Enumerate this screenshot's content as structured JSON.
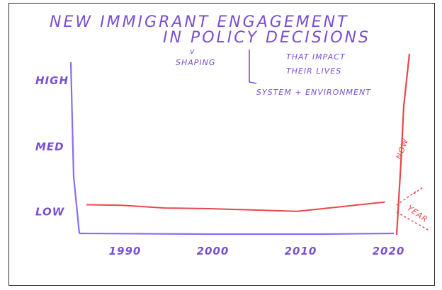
{
  "title_line1": "NEW IMMIGRANT ENGAGEMENT",
  "title_line2": "IN POLICY DECISIONS",
  "annotations": {
    "shaping": "SHAPING",
    "impact_1": "THAT IMPACT",
    "impact_2": "THEIR LIVES",
    "system": "SYSTEM + ENVIRONMENT"
  },
  "colors": {
    "axis": "#8a6df0",
    "ink": "#7a4fd0",
    "series": "#e8474a"
  },
  "chart_data": {
    "type": "line",
    "title": "NEW IMMIGRANT ENGAGEMENT IN POLICY DECISIONS",
    "xlabel": "",
    "ylabel": "",
    "x_ticks": [
      "1990",
      "2000",
      "2010",
      "2020"
    ],
    "y_ticks": [
      "LOW",
      "MED",
      "HIGH"
    ],
    "y_scale": "ordinal (LOW=0, MED=1, HIGH=2)",
    "xlim": [
      1986,
      2021
    ],
    "ylim": [
      -0.2,
      2.2
    ],
    "grid": false,
    "series": [
      {
        "x": [
          1986,
          1990,
          1995,
          2000,
          2005,
          2010,
          2015,
          2020
        ],
        "y": [
          0.18,
          0.17,
          0.13,
          0.12,
          0.1,
          0.08,
          0.15,
          0.22
        ]
      }
    ],
    "branch_labels": [
      "NOW",
      "YEAR"
    ]
  }
}
